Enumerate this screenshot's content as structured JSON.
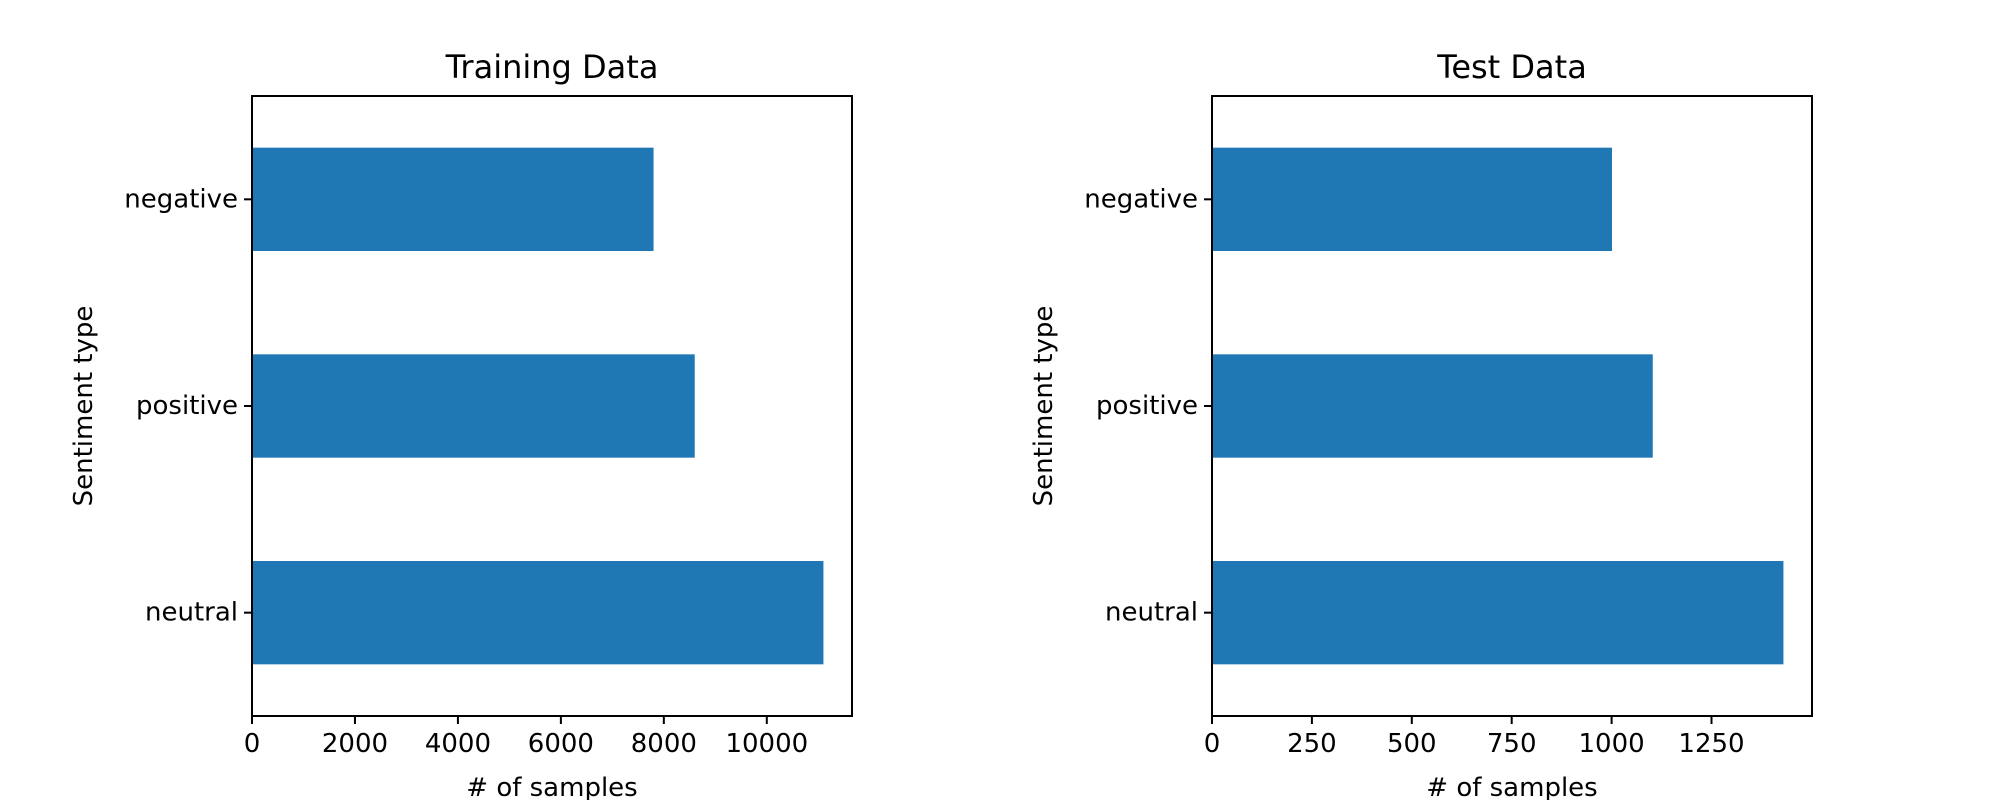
{
  "chart_data": [
    {
      "type": "bar",
      "orientation": "horizontal",
      "title": "Training Data",
      "xlabel": "# of samples",
      "ylabel": "Sentiment type",
      "categories": [
        "negative",
        "positive",
        "neutral"
      ],
      "values": [
        7800,
        8600,
        11100
      ],
      "xlim": [
        0,
        11655
      ],
      "xticks": [
        0,
        2000,
        4000,
        6000,
        8000,
        10000
      ],
      "xtick_labels": [
        "0",
        "2000",
        "4000",
        "6000",
        "8000",
        "10000"
      ],
      "bar_color": "#1f77b4",
      "grid": false,
      "legend": "none"
    },
    {
      "type": "bar",
      "orientation": "horizontal",
      "title": "Test Data",
      "xlabel": "# of samples",
      "ylabel": "Sentiment type",
      "categories": [
        "negative",
        "positive",
        "neutral"
      ],
      "values": [
        1001,
        1103,
        1430
      ],
      "xlim": [
        0,
        1501.5
      ],
      "xticks": [
        0,
        250,
        500,
        750,
        1000,
        1250
      ],
      "xtick_labels": [
        "0",
        "250",
        "500",
        "750",
        "1000",
        "1250"
      ],
      "bar_color": "#1f77b4",
      "grid": false,
      "legend": "none"
    }
  ]
}
